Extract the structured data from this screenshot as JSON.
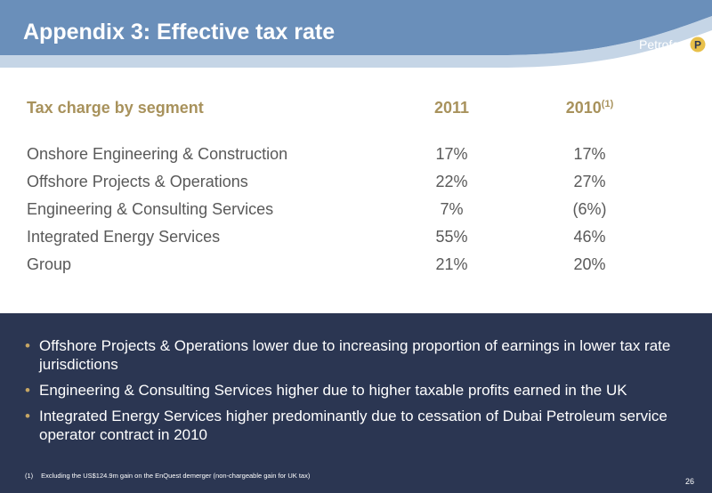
{
  "header": {
    "title": "Appendix 3: Effective tax rate",
    "logo_text": "Petrofac",
    "logo_icon": "petrofac-p-icon"
  },
  "table": {
    "heading": "Tax charge by segment",
    "col_2011": "2011",
    "col_2010": "2010",
    "col_2010_note": "(1)",
    "rows": [
      {
        "segment": "Onshore Engineering & Construction",
        "y2011": "17%",
        "y2010": "17%"
      },
      {
        "segment": "Offshore Projects & Operations",
        "y2011": "22%",
        "y2010": "27%"
      },
      {
        "segment": "Engineering & Consulting Services",
        "y2011": "7%",
        "y2010": "(6%)"
      },
      {
        "segment": "Integrated Energy Services",
        "y2011": "55%",
        "y2010": "46%"
      },
      {
        "segment": "Group",
        "y2011": "21%",
        "y2010": "20%"
      }
    ]
  },
  "bullets": [
    "Offshore Projects & Operations lower due to increasing proportion of earnings in lower tax rate jurisdictions",
    "Engineering & Consulting Services higher due to higher taxable profits earned in the UK",
    "Integrated Energy Services higher predominantly due to cessation of Dubai Petroleum service operator contract in 2010"
  ],
  "footnote": {
    "number": "(1)",
    "text": "Excluding the US$124.9m gain on the EnQuest demerger (non-chargeable gain for UK tax)"
  },
  "page_number": "26",
  "colors": {
    "header": "#6a8fba",
    "heading_gold": "#a8925c",
    "panel": "#2b3652",
    "bullet_dot": "#c6a664"
  }
}
